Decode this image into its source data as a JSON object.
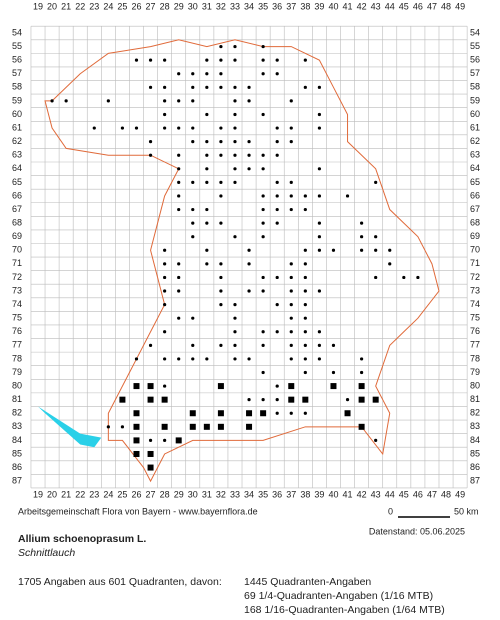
{
  "grid": {
    "columns": [
      19,
      20,
      21,
      22,
      23,
      24,
      25,
      26,
      27,
      28,
      29,
      30,
      31,
      32,
      33,
      34,
      35,
      36,
      37,
      38,
      39,
      40,
      41,
      42,
      43,
      44,
      45,
      46,
      47,
      48,
      49
    ],
    "rows": [
      54,
      55,
      56,
      57,
      58,
      59,
      60,
      61,
      62,
      63,
      64,
      65,
      66,
      67,
      68,
      69,
      70,
      71,
      72,
      73,
      74,
      75,
      76,
      77,
      78,
      79,
      80,
      81,
      82,
      83,
      84,
      85,
      86,
      87
    ]
  },
  "footer": {
    "credit": "Arbeitsgemeinschaft Flora von Bayern - www.bayernflora.de",
    "scale_start": "0",
    "scale_end": "50 km",
    "date": "Datenstand: 05.06.2025"
  },
  "species": {
    "name": "Allium schoenoprasum L.",
    "common_name": "Schnittlauch"
  },
  "stats": {
    "summary": "1705 Angaben aus 601 Quadranten, davon:",
    "lines": [
      "1445 Quadranten-Angaben",
      "69 1/4-Quadranten-Angaben (1/16 MTB)",
      "168 1/16-Quadranten-Angaben (1/64 MTB)"
    ]
  }
}
